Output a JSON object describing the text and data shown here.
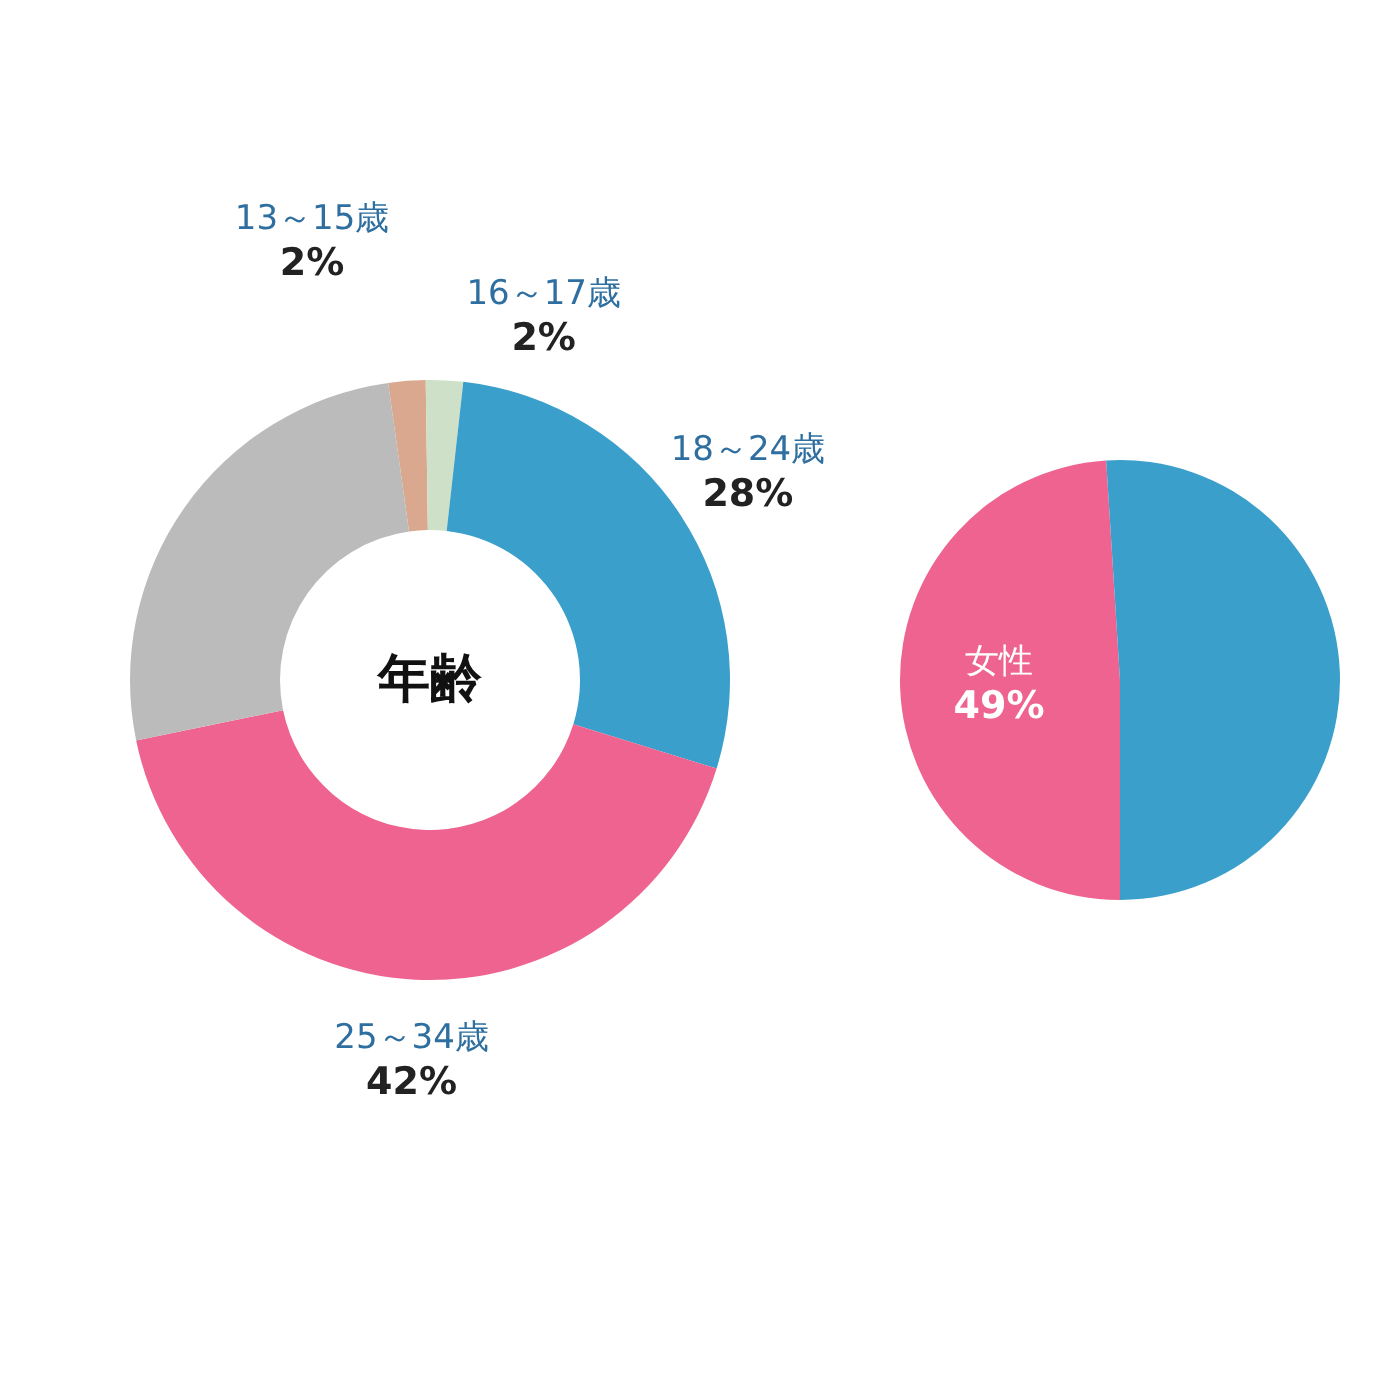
{
  "chart_data": [
    {
      "type": "donut",
      "title": "年齢",
      "categories": [
        "13～15歳",
        "16～17歳",
        "18～24歳",
        "25～34歳",
        null
      ],
      "values": [
        2,
        2,
        28,
        42,
        26
      ],
      "colors": [
        "#d9a88e",
        "#cfe0c8",
        "#3a9fcb",
        "#ee6390",
        "#bbbbbb"
      ],
      "value_labels": [
        "2%",
        "2%",
        "28%",
        "42%",
        null
      ]
    },
    {
      "type": "pie",
      "categories": [
        "女性",
        null
      ],
      "values": [
        49,
        51
      ],
      "colors": [
        "#ee6390",
        "#3a9fcb"
      ],
      "value_labels": [
        "49%",
        null
      ]
    }
  ]
}
